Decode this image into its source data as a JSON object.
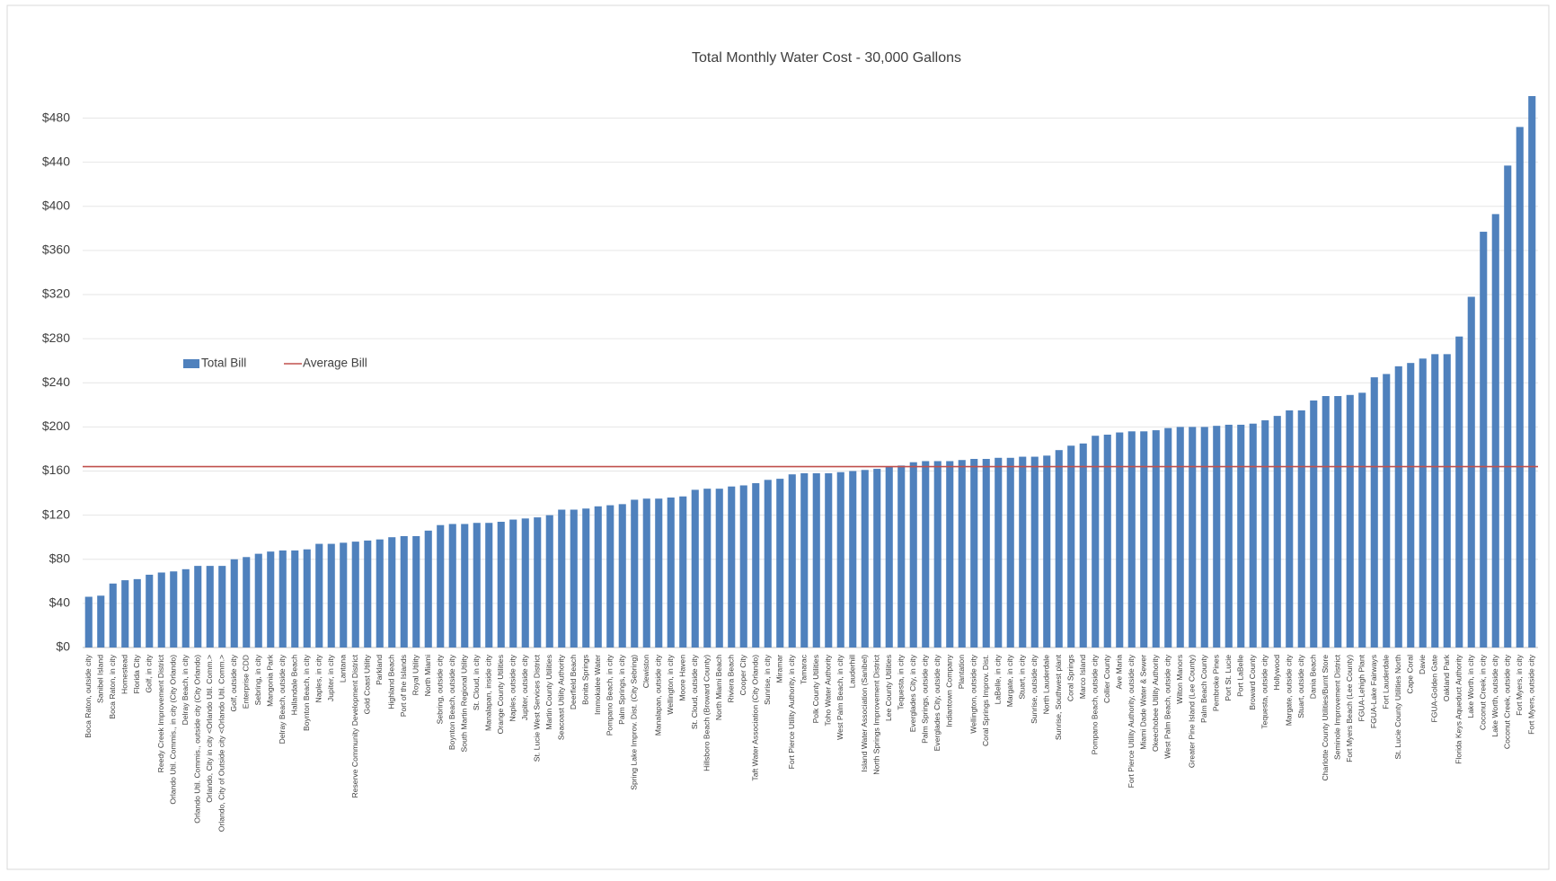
{
  "chart_data": {
    "type": "bar",
    "title": "Total Monthly Water Cost - 30,000 Gallons",
    "categories": [
      "Boca Raton, outside city",
      "Sanibel Island",
      "Boca Raton, in city",
      "Homestead",
      "Florida City",
      "Golf, in city",
      "Reedy Creek Improvement District",
      "Orlando Util. Commis., in city (City Orlando)",
      "Delray Beach, in city",
      "Orlando Util. Commis., outside city (City Orlando)",
      "Orlando, City in city <Orlando Util. Comm.>",
      "Orlando, City of Outside city <Orlando Util. Comm.>",
      "Golf, outside city",
      "Enterprise CDD",
      "Sebring, in city",
      "Mangonia Park",
      "Delray Beach, outside city",
      "Hallandale Beach",
      "Boynton Beach, in city",
      "Naples, in city",
      "Jupiter, in city",
      "Lantana",
      "Reserve Community Development District",
      "Gold Coast Utility",
      "Parkland",
      "Highland Beach",
      "Port of the Islands",
      "Royal Utility",
      "North Miami",
      "Sebring, outside city",
      "Boynton Beach, outside city",
      "South Martin Regional Utility",
      "St. Cloud, in city",
      "Manalapan, inside city",
      "Orange County Utilities",
      "Naples, outside city",
      "Jupiter, outside city",
      "St. Lucie West Services District",
      "Martin County Utilities",
      "Seacoast Utility Authority",
      "Deerfield Beach",
      "Bonita Springs",
      "Immokalee Water",
      "Pompano Beach, in city",
      "Palm Springs, in city",
      "Spring Lake Improv. Dist. (City Sebring)",
      "Clewiston",
      "Manalapan, outside city",
      "Wellington, in city",
      "Moore Haven",
      "St. Cloud, outside city",
      "Hillsboro Beach (Broward County)",
      "North Miami Beach",
      "Riviera Beach",
      "Cooper City",
      "Taft Water Association (City Orlando)",
      "Sunrise, in city",
      "Miramar",
      "Fort Pierce Utility Authority, in city",
      "Tamarac",
      "Polk County Utilities",
      "Toho Water Authority",
      "West Palm Beach, in city",
      "Lauderhill",
      "Island Water Association (Sanibel)",
      "North Springs Improvement District",
      "Lee County Utilities",
      "Tequesta, in city",
      "Everglades City, in city",
      "Palm Springs, outside city",
      "Everglades City, outside city",
      "Indiantown Company",
      "Plantation",
      "Wellington, outside city",
      "Coral Springs Improv. Dist.",
      "LaBelle, in city",
      "Margate, in city",
      "Stuart, in city",
      "Sunrise, outside city",
      "North Lauderdale",
      "Sunrise, Southwest plant",
      "Coral Springs",
      "Marco Island",
      "Pompano Beach, outside city",
      "Collier County",
      "Ave Maria",
      "Fort Pierce Utility Authority, outside city",
      "Miami Dade Water & Sewer",
      "Okeechobee Utility Authority",
      "West Palm Beach, outside city",
      "Wilton Manors",
      "Greater Pine Island (Lee County)",
      "Palm Beach County",
      "Pembroke Pines",
      "Port St. Lucie",
      "Port LaBelle",
      "Broward County",
      "Tequesta, outside city",
      "Hollywood",
      "Margate, outside city",
      "Stuart, outside city",
      "Dania Beach",
      "Charlotte County Utilities/Burnt Store",
      "Seminole Improvement District",
      "Fort Myers Beach (Lee County)",
      "FGUA-Lehigh Plant",
      "FGUA-Lake Fairways",
      "Fort Lauderdale",
      "St. Lucie County Utilities North",
      "Cape Coral",
      "Davie",
      "FGUA-Golden Gate",
      "Oakland Park",
      "Florida Keys Aqueduct Authority",
      "Lake Worth, in city",
      "Coconut Creek, in city",
      "Lake Worth, outside city",
      "Coconut Creek, outside city",
      "Fort Myers, in city",
      "Fort Myers, outside city"
    ],
    "series": [
      {
        "name": "Total Bill",
        "color": "#4f81bd",
        "values": [
          46,
          47,
          58,
          61,
          62,
          66,
          68,
          69,
          71,
          74,
          74,
          74,
          80,
          82,
          85,
          87,
          88,
          88,
          89,
          94,
          94,
          95,
          96,
          97,
          98,
          100,
          101,
          101,
          106,
          111,
          112,
          112,
          113,
          113,
          114,
          116,
          117,
          118,
          120,
          125,
          125,
          126,
          128,
          129,
          130,
          134,
          135,
          135,
          136,
          137,
          143,
          144,
          144,
          146,
          147,
          149,
          152,
          153,
          157,
          158,
          158,
          158,
          159,
          160,
          161,
          162,
          164,
          165,
          168,
          169,
          169,
          169,
          170,
          171,
          171,
          172,
          172,
          173,
          173,
          174,
          179,
          183,
          185,
          192,
          193,
          195,
          196,
          196,
          197,
          199,
          200,
          200,
          200,
          201,
          202,
          202,
          203,
          206,
          210,
          215,
          215,
          224,
          228,
          228,
          229,
          231,
          245,
          248,
          255,
          258,
          262,
          266,
          266,
          282,
          318,
          377,
          393,
          437,
          472,
          500
        ]
      }
    ],
    "average": {
      "name": "Average Bill",
      "color": "#c0504d",
      "value": 164
    },
    "ylim": [
      0,
      500
    ],
    "yticks": [
      {
        "value": 0,
        "label": "$0"
      },
      {
        "value": 40,
        "label": "$40"
      },
      {
        "value": 80,
        "label": "$80"
      },
      {
        "value": 120,
        "label": "$120"
      },
      {
        "value": 160,
        "label": "$160"
      },
      {
        "value": 200,
        "label": "$200"
      },
      {
        "value": 240,
        "label": "$240"
      },
      {
        "value": 280,
        "label": "$280"
      },
      {
        "value": 320,
        "label": "$320"
      },
      {
        "value": 360,
        "label": "$360"
      },
      {
        "value": 400,
        "label": "$400"
      },
      {
        "value": 440,
        "label": "$440"
      },
      {
        "value": 480,
        "label": "$480"
      }
    ],
    "grid": true
  }
}
